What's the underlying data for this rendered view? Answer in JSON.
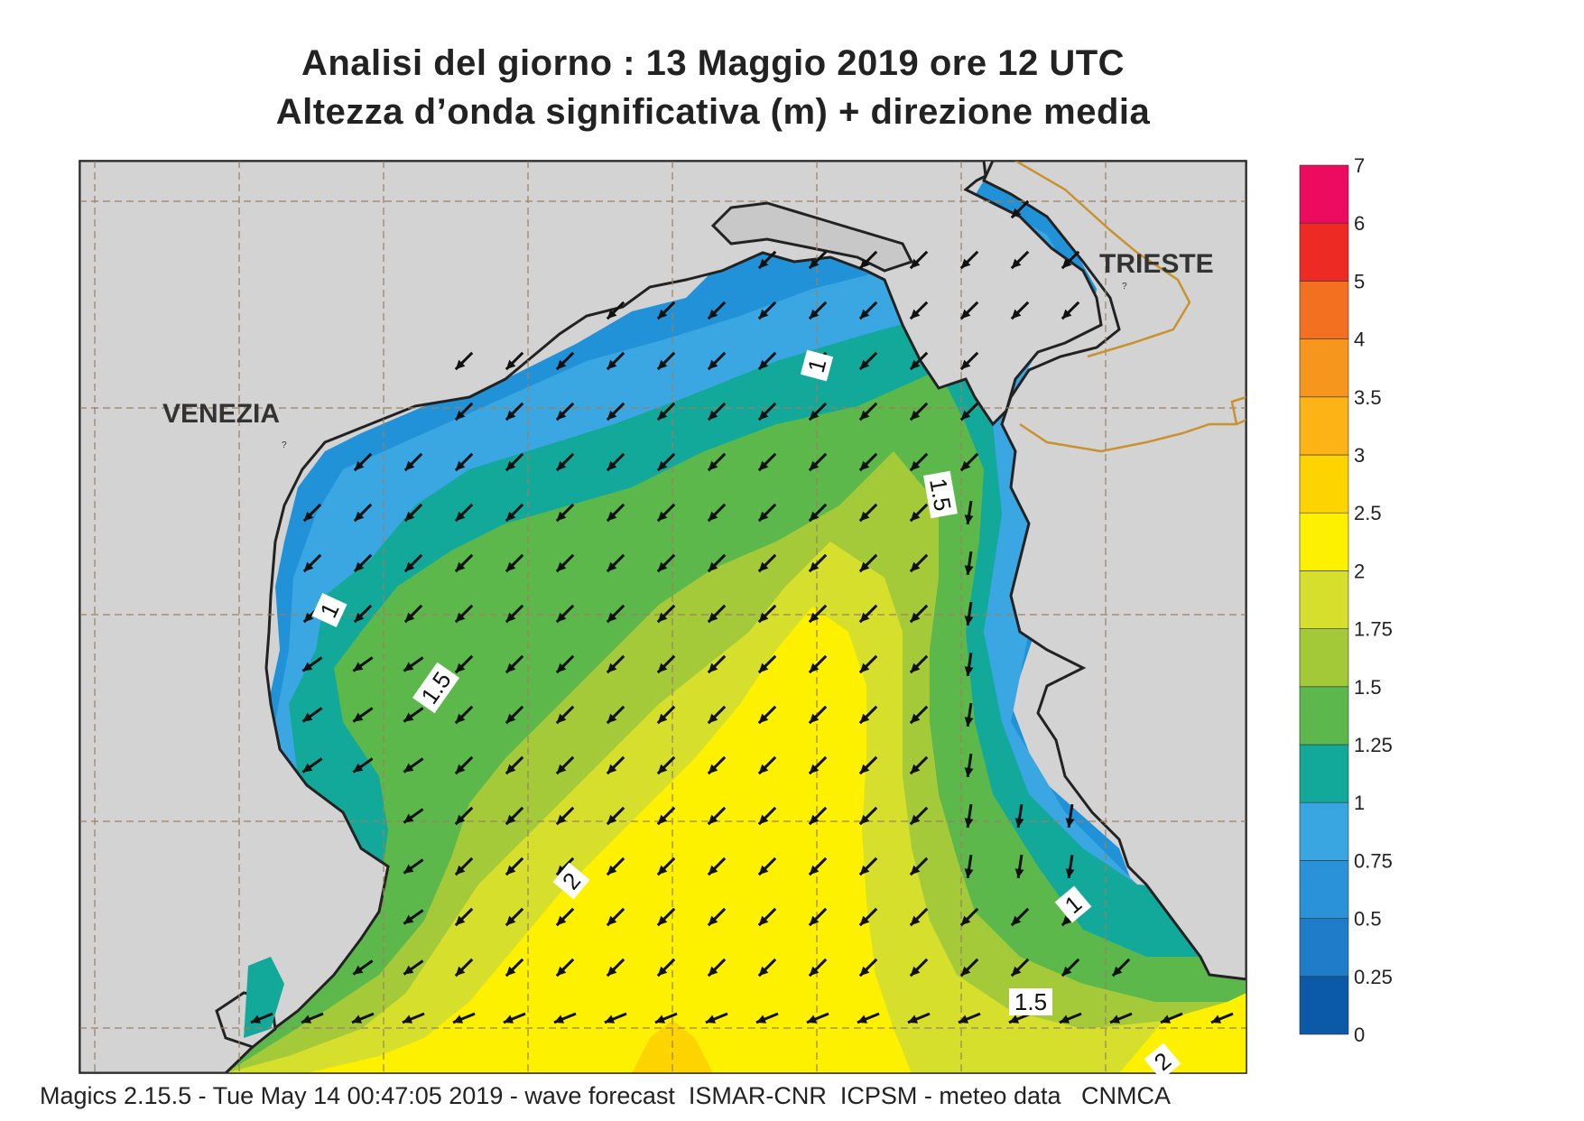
{
  "title": {
    "line1": "Analisi del giorno :  13   Maggio  2019   ore 12 UTC",
    "line2": "Altezza d’onda significativa (m) + direzione media"
  },
  "cities": {
    "venezia": "VENEZIA",
    "trieste": "TRIESTE"
  },
  "contour_labels": {
    "c1_north": "1",
    "c1_west": "1",
    "c1_east": "1",
    "c15_west": "1.5",
    "c15_north": "1.5",
    "c15_south": "1.5",
    "c2_center": "2",
    "c2_south": "2"
  },
  "colorbar": {
    "unit": "m",
    "levels": [
      "0",
      "0.25",
      "0.5",
      "0.75",
      "1",
      "1.25",
      "1.5",
      "1.75",
      "2",
      "2.5",
      "3",
      "3.5",
      "4",
      "5",
      "6",
      "7"
    ],
    "colors": [
      "#0a5aa8",
      "#1f7cc8",
      "#2a93d8",
      "#39a6e2",
      "#12a89a",
      "#5cb84c",
      "#a3c939",
      "#d6df2c",
      "#fdf100",
      "#fdd400",
      "#fbb316",
      "#f7961d",
      "#f37021",
      "#ee2a24",
      "#ec0b5e"
    ]
  },
  "wave_direction": "toward south-west",
  "footer": "Magics 2.15.5 - Tue May 14 00:47:05 2019 - wave forecast  ISMAR-CNR  ICPSM - meteo data   CNMCA"
}
